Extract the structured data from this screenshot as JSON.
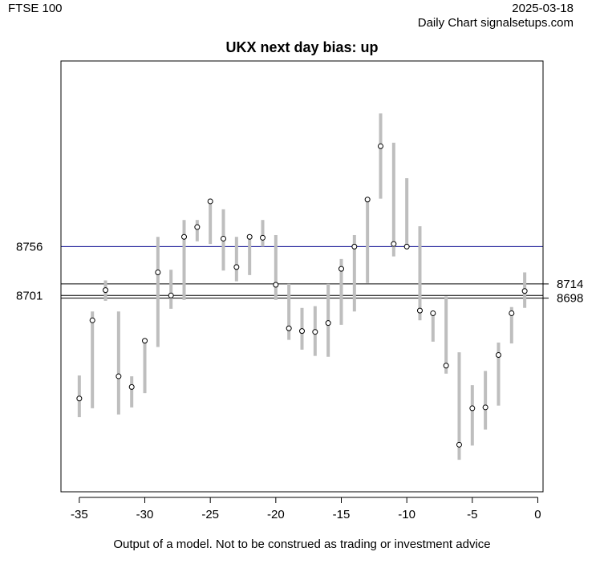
{
  "header": {
    "left": "FTSE 100",
    "date": "2025-03-18",
    "source": "Daily Chart signalsetups.com"
  },
  "footer": "Output of a model. Not to be construed as trading or investment advice",
  "colors": {
    "bar": "#bebebe",
    "point_fill": "#ffffff",
    "point_stroke": "#000000",
    "blue_line": "#00008b",
    "black_line": "#000000"
  },
  "chart_data": {
    "type": "scatter",
    "title": "UKX next day bias: up",
    "xlim": [
      -36.4,
      0.4
    ],
    "ylim": [
      8480,
      8965
    ],
    "x_ticks": [
      -35,
      -30,
      -25,
      -20,
      -15,
      -10,
      -5,
      0
    ],
    "x_tick_labels": [
      "-35",
      "-30",
      "-25",
      "-20",
      "-15",
      "-10",
      "-5",
      "0"
    ],
    "y_ticks": [
      8756,
      8701
    ],
    "y_tick_labels": [
      "8756",
      "8701"
    ],
    "reference_lines": [
      {
        "value": 8756,
        "color": "blue",
        "label": "",
        "side": "left"
      },
      {
        "value": 8714,
        "color": "black",
        "label": "8714",
        "side": "right"
      },
      {
        "value": 8701,
        "color": "black",
        "label": "",
        "side": "left"
      },
      {
        "value": 8698,
        "color": "black",
        "label": "8698",
        "side": "right"
      }
    ],
    "points": [
      {
        "x": -35,
        "y": 8585,
        "low": 8564,
        "high": 8611
      },
      {
        "x": -34,
        "y": 8673,
        "low": 8574,
        "high": 8683
      },
      {
        "x": -33,
        "y": 8707,
        "low": 8695,
        "high": 8718
      },
      {
        "x": -32,
        "y": 8610,
        "low": 8567,
        "high": 8683
      },
      {
        "x": -31,
        "y": 8598,
        "low": 8575,
        "high": 8610
      },
      {
        "x": -30,
        "y": 8650,
        "low": 8591,
        "high": 8651
      },
      {
        "x": -29,
        "y": 8727,
        "low": 8643,
        "high": 8767
      },
      {
        "x": -28,
        "y": 8701,
        "low": 8686,
        "high": 8730
      },
      {
        "x": -27,
        "y": 8767,
        "low": 8696,
        "high": 8786
      },
      {
        "x": -26,
        "y": 8778,
        "low": 8762,
        "high": 8786
      },
      {
        "x": -25,
        "y": 8807,
        "low": 8759,
        "high": 8810
      },
      {
        "x": -24,
        "y": 8765,
        "low": 8729,
        "high": 8798
      },
      {
        "x": -23,
        "y": 8733,
        "low": 8717,
        "high": 8767
      },
      {
        "x": -22,
        "y": 8767,
        "low": 8724,
        "high": 8768
      },
      {
        "x": -21,
        "y": 8766,
        "low": 8756,
        "high": 8786
      },
      {
        "x": -20,
        "y": 8713,
        "low": 8696,
        "high": 8769
      },
      {
        "x": -19,
        "y": 8664,
        "low": 8651,
        "high": 8714
      },
      {
        "x": -18,
        "y": 8661,
        "low": 8640,
        "high": 8687
      },
      {
        "x": -17,
        "y": 8660,
        "low": 8633,
        "high": 8689
      },
      {
        "x": -16,
        "y": 8670,
        "low": 8632,
        "high": 8714
      },
      {
        "x": -15,
        "y": 8731,
        "low": 8668,
        "high": 8742
      },
      {
        "x": -14,
        "y": 8756,
        "low": 8683,
        "high": 8769
      },
      {
        "x": -13,
        "y": 8809,
        "low": 8715,
        "high": 8810
      },
      {
        "x": -12,
        "y": 8869,
        "low": 8810,
        "high": 8906
      },
      {
        "x": -11,
        "y": 8759,
        "low": 8745,
        "high": 8873
      },
      {
        "x": -10,
        "y": 8756,
        "low": 8756,
        "high": 8833
      },
      {
        "x": -9,
        "y": 8684,
        "low": 8673,
        "high": 8779
      },
      {
        "x": -8,
        "y": 8681,
        "low": 8649,
        "high": 8681
      },
      {
        "x": -7,
        "y": 8622,
        "low": 8613,
        "high": 8700
      },
      {
        "x": -6,
        "y": 8533,
        "low": 8516,
        "high": 8637
      },
      {
        "x": -5,
        "y": 8574,
        "low": 8532,
        "high": 8600
      },
      {
        "x": -4,
        "y": 8575,
        "low": 8550,
        "high": 8616
      },
      {
        "x": -3,
        "y": 8634,
        "low": 8577,
        "high": 8648
      },
      {
        "x": -2,
        "y": 8681,
        "low": 8647,
        "high": 8688
      },
      {
        "x": -1,
        "y": 8706,
        "low": 8687,
        "high": 8727
      }
    ]
  }
}
